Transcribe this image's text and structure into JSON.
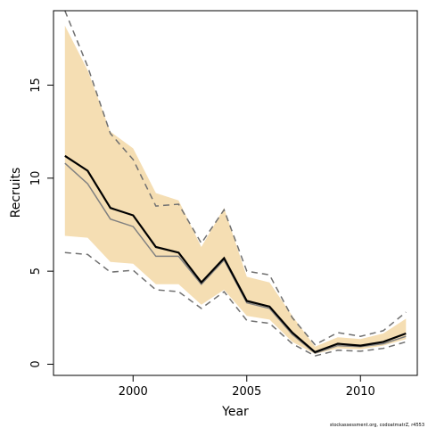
{
  "chart_data": {
    "type": "line",
    "xlabel": "Year",
    "ylabel": "Recruits",
    "xlim": [
      1996.5,
      2012.5
    ],
    "ylim": [
      -0.6,
      19.0
    ],
    "x_ticks": [
      2000,
      2005,
      2010
    ],
    "y_ticks": [
      0,
      5,
      10,
      15
    ],
    "x": [
      1997,
      1998,
      1999,
      2000,
      2001,
      2002,
      2003,
      2004,
      2005,
      2006,
      2007,
      2008,
      2009,
      2010,
      2011,
      2012
    ],
    "series": [
      {
        "role": "band",
        "color": "#f5deb3",
        "lower": [
          6.9,
          6.8,
          5.5,
          5.4,
          4.3,
          4.3,
          3.2,
          4.0,
          2.6,
          2.4,
          1.2,
          0.55,
          0.85,
          0.8,
          1.0,
          1.35
        ],
        "upper": [
          18.2,
          15.8,
          12.5,
          11.6,
          9.2,
          8.8,
          6.3,
          8.4,
          4.7,
          4.4,
          2.6,
          0.95,
          1.45,
          1.35,
          1.65,
          2.45
        ]
      },
      {
        "role": "upper-dashed",
        "color": "#707070",
        "values": [
          19.0,
          16.0,
          12.4,
          11.0,
          8.5,
          8.6,
          6.5,
          8.3,
          5.0,
          4.8,
          2.5,
          1.05,
          1.7,
          1.5,
          1.8,
          2.8
        ]
      },
      {
        "role": "lower-dashed",
        "color": "#707070",
        "values": [
          6.0,
          5.9,
          4.95,
          5.05,
          4.0,
          3.9,
          3.0,
          3.9,
          2.35,
          2.2,
          1.1,
          0.45,
          0.75,
          0.7,
          0.85,
          1.2
        ]
      },
      {
        "role": "median",
        "color": "#808080",
        "values": [
          10.8,
          9.7,
          7.8,
          7.4,
          5.8,
          5.8,
          4.3,
          5.6,
          3.3,
          3.0,
          1.6,
          0.6,
          1.0,
          0.95,
          1.1,
          1.5
        ]
      },
      {
        "role": "estimate",
        "color": "#000000",
        "values": [
          11.2,
          10.4,
          8.4,
          8.0,
          6.3,
          6.0,
          4.4,
          5.7,
          3.4,
          3.1,
          1.7,
          0.65,
          1.1,
          1.0,
          1.2,
          1.65
        ]
      }
    ],
    "grid": false,
    "legend": "none"
  },
  "credit": "stockassessment.org, codoatmatrZ, r4553"
}
